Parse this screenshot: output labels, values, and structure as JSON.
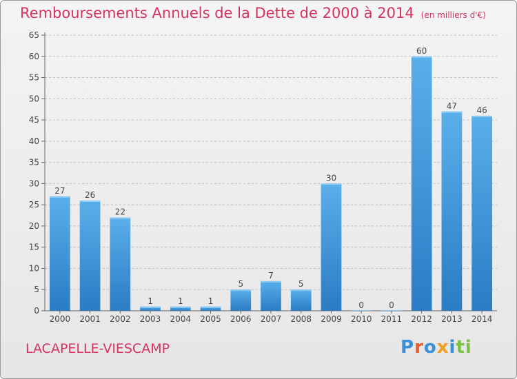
{
  "chart_data": {
    "type": "bar",
    "title": "Remboursements Annuels de la Dette de 2000 à 2014",
    "subtitle": "(en milliers d'€)",
    "categories": [
      "2000",
      "2001",
      "2002",
      "2003",
      "2004",
      "2005",
      "2006",
      "2007",
      "2008",
      "2009",
      "2010",
      "2011",
      "2012",
      "2013",
      "2014"
    ],
    "values": [
      27,
      26,
      22,
      1,
      1,
      1,
      5,
      7,
      5,
      30,
      0,
      0,
      60,
      47,
      46
    ],
    "data_labels": [
      "27",
      "26",
      "22",
      "1",
      "1",
      "1",
      "5",
      "7",
      "5",
      "30",
      "0",
      "0",
      "60",
      "47",
      "46"
    ],
    "yticks": [
      "0",
      "5",
      "10",
      "15",
      "20",
      "25",
      "30",
      "35",
      "40",
      "45",
      "50",
      "55",
      "60",
      "65"
    ],
    "ylim": [
      0,
      65
    ],
    "xlabel": "",
    "ylabel": "",
    "grid": "horizontal-dashed",
    "bar_color": "#4a9fe0",
    "text_color": "#d6335e"
  },
  "footer": {
    "commune": "LACAPELLE-VIESCAMP",
    "logo_text": "Proxiti",
    "logo_colors": [
      "#3a8fd8",
      "#e85b2a",
      "#3a8fd8",
      "#f0a020",
      "#3a8fd8",
      "#7cc142",
      "#7cc142"
    ]
  }
}
